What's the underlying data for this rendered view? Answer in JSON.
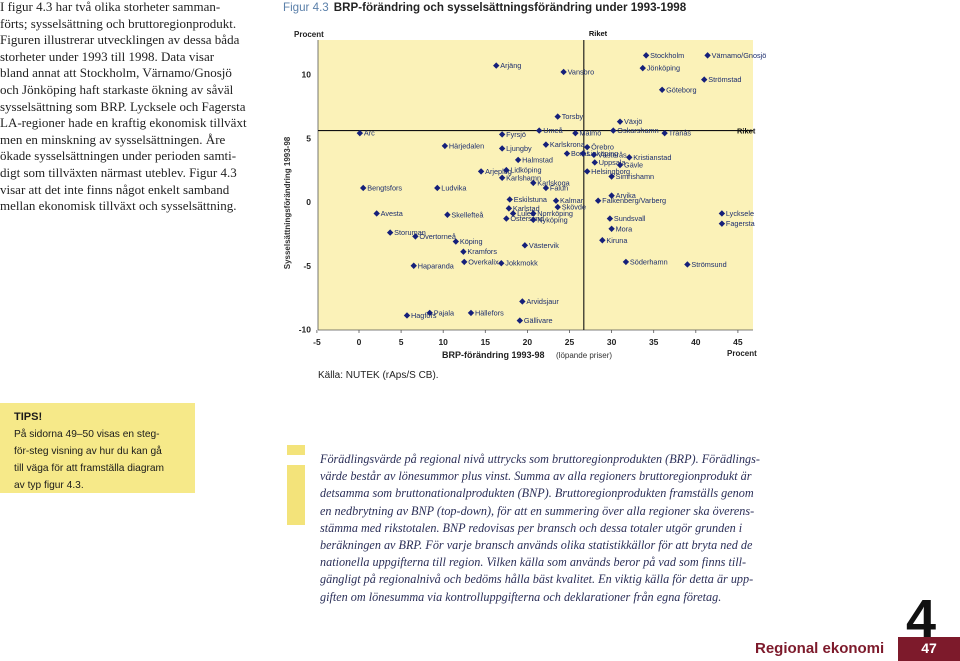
{
  "intro": {
    "lines": [
      "I figur 4.3 har två olika storheter samman-",
      "förts; sysselsättning och bruttoregionprodukt.",
      "Figuren illustrerar utvecklingen av dessa båda",
      "storheter under 1993 till 1998. Data visar",
      "bland annat att Stockholm, Värnamo/Gnosjö",
      "och Jönköping haft starkaste ökning av såväl",
      "sysselsättning som BRP. Lycksele och Fagersta",
      "LA-regioner hade en kraftig ekonomisk tillväxt",
      "men en minskning av sysselsättningen. Åre",
      "ökade sysselsättningen under perioden samti-",
      "digt som tillväxten närmast uteblev. Figur 4.3",
      "visar att det inte finns något enkelt samband",
      "mellan ekonomisk tillväxt och sysselsättning."
    ]
  },
  "figure": {
    "number": "Figur 4.3",
    "source": "Källa: NUTEK (rAps/S CB)."
  },
  "chart_data": {
    "type": "scatter",
    "title": "BRP-förändring och sysselsättningsförändring under 1993-1998",
    "xlabel": "BRP-förändring 1993-98",
    "xlabel_note": "(löpande priser)",
    "x_unit": "Procent",
    "ylabel": "Sysselsättningsförändring 1993-98",
    "y_unit": "Procent",
    "xlim": [
      -5,
      45
    ],
    "ylim": [
      -10,
      12
    ],
    "xticks": [
      -5,
      0,
      5,
      10,
      15,
      20,
      25,
      30,
      35,
      40,
      45
    ],
    "yticks": [
      -10,
      -5,
      0,
      5,
      10
    ],
    "grid": false,
    "reference": {
      "label": "Riket",
      "x": 26.7,
      "y": 5.6
    },
    "colors": {
      "plot_bg": "#fbf2b8",
      "marker": "#15207a",
      "label": "#1d2e6e",
      "reference": "#111111"
    },
    "points": [
      {
        "name": "Arjäng",
        "x": 16.3,
        "y": 10.7
      },
      {
        "name": "Vansbro",
        "x": 24.3,
        "y": 10.2
      },
      {
        "name": "Stockholm",
        "x": 34.1,
        "y": 11.5
      },
      {
        "name": "Värnamo/Gnosjö",
        "x": 41.4,
        "y": 11.5
      },
      {
        "name": "Jönköping",
        "x": 33.7,
        "y": 10.5
      },
      {
        "name": "Strömstad",
        "x": 41.0,
        "y": 9.6
      },
      {
        "name": "Göteborg",
        "x": 36.0,
        "y": 8.8
      },
      {
        "name": "Torsby",
        "x": 23.6,
        "y": 6.7
      },
      {
        "name": "Växjö",
        "x": 31.0,
        "y": 6.3
      },
      {
        "name": "Arc",
        "x": 0.1,
        "y": 5.4
      },
      {
        "name": "Fyrsjö",
        "x": 17.0,
        "y": 5.3
      },
      {
        "name": "Umeå",
        "x": 21.4,
        "y": 5.6
      },
      {
        "name": "Malmö",
        "x": 25.7,
        "y": 5.4
      },
      {
        "name": "Oskarshamn",
        "x": 30.2,
        "y": 5.6
      },
      {
        "name": "Tranås",
        "x": 36.3,
        "y": 5.4
      },
      {
        "name": "Härjedalen",
        "x": 10.2,
        "y": 4.4
      },
      {
        "name": "Ljungby",
        "x": 17.0,
        "y": 4.2
      },
      {
        "name": "Karlskrona",
        "x": 22.2,
        "y": 4.5
      },
      {
        "name": "Örebro",
        "x": 27.1,
        "y": 4.3
      },
      {
        "name": "Borås",
        "x": 24.7,
        "y": 3.8
      },
      {
        "name": "Linköping",
        "x": 26.6,
        "y": 3.8
      },
      {
        "name": "Västerås",
        "x": 27.9,
        "y": 3.7
      },
      {
        "name": "Kristianstad",
        "x": 32.1,
        "y": 3.5
      },
      {
        "name": "Halmstad",
        "x": 18.9,
        "y": 3.3
      },
      {
        "name": "Uppsala",
        "x": 28.0,
        "y": 3.1
      },
      {
        "name": "Gävle",
        "x": 31.0,
        "y": 2.9
      },
      {
        "name": "Helsingborg",
        "x": 27.1,
        "y": 2.4
      },
      {
        "name": "Simrishamn",
        "x": 30.0,
        "y": 2.0
      },
      {
        "name": "Arjeplog",
        "x": 14.5,
        "y": 2.4
      },
      {
        "name": "Lidköping",
        "x": 17.5,
        "y": 2.5
      },
      {
        "name": "Karlshamn",
        "x": 17.0,
        "y": 1.9
      },
      {
        "name": "Karlskoga",
        "x": 20.7,
        "y": 1.5
      },
      {
        "name": "Falun",
        "x": 22.2,
        "y": 1.1
      },
      {
        "name": "Bengtsfors",
        "x": 0.5,
        "y": 1.1
      },
      {
        "name": "Ludvika",
        "x": 9.3,
        "y": 1.1
      },
      {
        "name": "Arvika",
        "x": 30.0,
        "y": 0.5
      },
      {
        "name": "Falkenberg/Varberg",
        "x": 28.4,
        "y": 0.1
      },
      {
        "name": "Eskilstuna",
        "x": 17.9,
        "y": 0.2
      },
      {
        "name": "Kalmar",
        "x": 23.4,
        "y": 0.1
      },
      {
        "name": "Karlstad",
        "x": 17.8,
        "y": -0.5
      },
      {
        "name": "Skövde",
        "x": 23.6,
        "y": -0.4
      },
      {
        "name": "Luleå",
        "x": 18.3,
        "y": -0.9
      },
      {
        "name": "Norrköping",
        "x": 20.7,
        "y": -0.9
      },
      {
        "name": "Östersund",
        "x": 17.5,
        "y": -1.3
      },
      {
        "name": "Nyköping",
        "x": 20.7,
        "y": -1.4
      },
      {
        "name": "Sundsvall",
        "x": 29.8,
        "y": -1.3
      },
      {
        "name": "Mora",
        "x": 30.0,
        "y": -2.1
      },
      {
        "name": "Avesta",
        "x": 2.1,
        "y": -0.9
      },
      {
        "name": "Skellefteå",
        "x": 10.5,
        "y": -1.0
      },
      {
        "name": "Lycksele",
        "x": 43.1,
        "y": -0.9
      },
      {
        "name": "Fagersta",
        "x": 43.1,
        "y": -1.7
      },
      {
        "name": "Storuman",
        "x": 3.7,
        "y": -2.4
      },
      {
        "name": "Övertorneå",
        "x": 6.7,
        "y": -2.7
      },
      {
        "name": "Köping",
        "x": 11.5,
        "y": -3.1
      },
      {
        "name": "Kiruna",
        "x": 28.9,
        "y": -3.0
      },
      {
        "name": "Västervik",
        "x": 19.7,
        "y": -3.4
      },
      {
        "name": "Kramfors",
        "x": 12.4,
        "y": -3.9
      },
      {
        "name": "Overkalix",
        "x": 12.5,
        "y": -4.7
      },
      {
        "name": "Jokkmokk",
        "x": 16.9,
        "y": -4.8
      },
      {
        "name": "Haparanda",
        "x": 6.5,
        "y": -5.0
      },
      {
        "name": "Söderhamn",
        "x": 31.7,
        "y": -4.7
      },
      {
        "name": "Strömsund",
        "x": 39.0,
        "y": -4.9
      },
      {
        "name": "Arvidsjaur",
        "x": 19.4,
        "y": -7.8
      },
      {
        "name": "Pajala",
        "x": 8.4,
        "y": -8.7
      },
      {
        "name": "Hagfors",
        "x": 5.7,
        "y": -8.9
      },
      {
        "name": "Hällefors",
        "x": 13.3,
        "y": -8.7
      },
      {
        "name": "Gällivare",
        "x": 19.1,
        "y": -9.3
      }
    ]
  },
  "tips": {
    "heading": "TIPS!",
    "lines": [
      "På sidorna 49–50 visas en steg-",
      "för-steg visning av hur du kan gå",
      "till väga för att framställa diagram",
      "av typ figur 4.3."
    ]
  },
  "note": {
    "lines": [
      "Förädlingsvärde på regional nivå uttrycks som bruttoregionprodukten (BRP). Förädlings-",
      "värde består av lönesummor plus vinst. Summa av alla regioners bruttoregionprodukt är",
      "detsamma som bruttonationalprodukten (BNP). Bruttoregionprodukten framställs genom",
      "en nedbrytning av BNP (top-down), för att en summering över alla regioner ska överens-",
      "stämma med rikstotalen. BNP redovisas per bransch och dessa totaler utgör grunden i",
      "beräkningen av BRP. För varje bransch används olika statistikkällor för att bryta ned de",
      "nationella uppgifterna till region. Vilken källa som används beror på vad som finns till-",
      "gängligt på regionalnivå och bedöms hålla bäst kvalitet. En viktig källa för detta är upp-",
      "giften om lönesumma via kontrolluppgifterna och deklarationer från egna företag."
    ]
  },
  "footer": {
    "chapter": "4",
    "section": "Regional ekonomi",
    "page": "47"
  }
}
